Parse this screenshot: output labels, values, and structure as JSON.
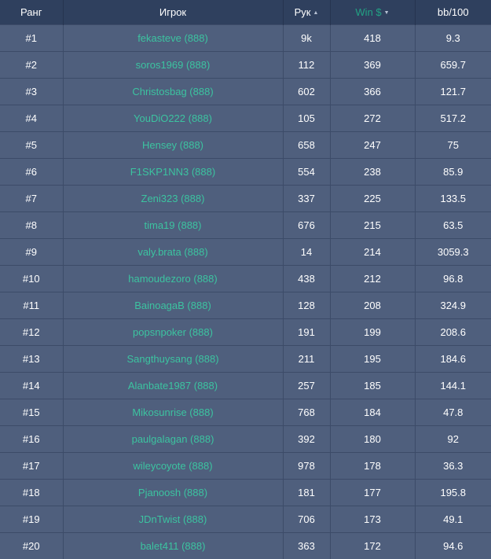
{
  "columns": {
    "rank": "Ранг",
    "player": "Игрок",
    "hands": "Рук",
    "win": "Win $",
    "bb100": "bb/100",
    "hands_sort_icon": "▲",
    "win_sort_icon": "▼"
  },
  "colors": {
    "accent": "#22a384",
    "player_link": "#3cc3a0",
    "header_bg": "#2f405e",
    "row_bg": "#4f5f7d"
  },
  "rows": [
    {
      "rank": "#1",
      "player": "fekasteve (888)",
      "hands": "9k",
      "win": "418",
      "bb100": "9.3"
    },
    {
      "rank": "#2",
      "player": "soros1969 (888)",
      "hands": "112",
      "win": "369",
      "bb100": "659.7"
    },
    {
      "rank": "#3",
      "player": "Christosbag (888)",
      "hands": "602",
      "win": "366",
      "bb100": "121.7"
    },
    {
      "rank": "#4",
      "player": "YouDiO222 (888)",
      "hands": "105",
      "win": "272",
      "bb100": "517.2"
    },
    {
      "rank": "#5",
      "player": "Hensey (888)",
      "hands": "658",
      "win": "247",
      "bb100": "75"
    },
    {
      "rank": "#6",
      "player": "F1SKP1NN3 (888)",
      "hands": "554",
      "win": "238",
      "bb100": "85.9"
    },
    {
      "rank": "#7",
      "player": "Zeni323 (888)",
      "hands": "337",
      "win": "225",
      "bb100": "133.5"
    },
    {
      "rank": "#8",
      "player": "tima19 (888)",
      "hands": "676",
      "win": "215",
      "bb100": "63.5"
    },
    {
      "rank": "#9",
      "player": "valy.brata (888)",
      "hands": "14",
      "win": "214",
      "bb100": "3059.3"
    },
    {
      "rank": "#10",
      "player": "hamoudezoro (888)",
      "hands": "438",
      "win": "212",
      "bb100": "96.8"
    },
    {
      "rank": "#11",
      "player": "BainoagaB (888)",
      "hands": "128",
      "win": "208",
      "bb100": "324.9"
    },
    {
      "rank": "#12",
      "player": "popsnpoker (888)",
      "hands": "191",
      "win": "199",
      "bb100": "208.6"
    },
    {
      "rank": "#13",
      "player": "Sangthuysang (888)",
      "hands": "211",
      "win": "195",
      "bb100": "184.6"
    },
    {
      "rank": "#14",
      "player": "Alanbate1987 (888)",
      "hands": "257",
      "win": "185",
      "bb100": "144.1"
    },
    {
      "rank": "#15",
      "player": "Mikosunrise (888)",
      "hands": "768",
      "win": "184",
      "bb100": "47.8"
    },
    {
      "rank": "#16",
      "player": "paulgalagan (888)",
      "hands": "392",
      "win": "180",
      "bb100": "92"
    },
    {
      "rank": "#17",
      "player": "wileycoyote (888)",
      "hands": "978",
      "win": "178",
      "bb100": "36.3"
    },
    {
      "rank": "#18",
      "player": "Pjanoosh (888)",
      "hands": "181",
      "win": "177",
      "bb100": "195.8"
    },
    {
      "rank": "#19",
      "player": "JDnTwist (888)",
      "hands": "706",
      "win": "173",
      "bb100": "49.1"
    },
    {
      "rank": "#20",
      "player": "balet411 (888)",
      "hands": "363",
      "win": "172",
      "bb100": "94.6"
    }
  ]
}
